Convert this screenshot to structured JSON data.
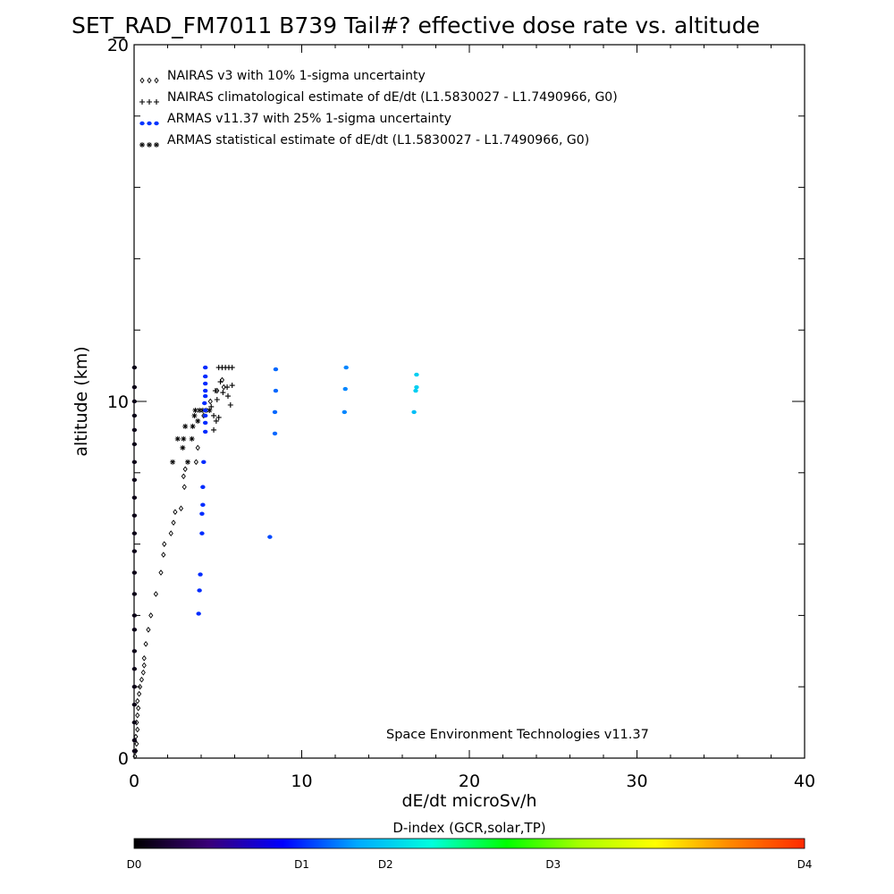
{
  "title": "SET_RAD_FM7011  B739 Tail#? effective dose rate vs. altitude",
  "credit": "Space Environment Technologies v11.37",
  "colorbar": {
    "title": "D-index (GCR,solar,TP)",
    "labels": [
      {
        "text": "D0",
        "value": 0
      },
      {
        "text": "D1",
        "value": 0.25
      },
      {
        "text": "D2",
        "value": 0.375
      },
      {
        "text": "D3",
        "value": 0.625
      },
      {
        "text": "D4",
        "value": 1.0
      }
    ],
    "stops": [
      "#000000",
      "#3a0078",
      "#0000ff",
      "#00aaff",
      "#00ffdd",
      "#00ff00",
      "#aaff00",
      "#ffff00",
      "#ff8800",
      "#ff2a00"
    ]
  },
  "chart_data": {
    "type": "scatter",
    "title": "SET_RAD_FM7011  B739 Tail#? effective dose rate vs. altitude",
    "xlabel": "dE/dt microSv/h",
    "ylabel": "altitude (km)",
    "xlim": [
      0,
      40
    ],
    "ylim": [
      0,
      20
    ],
    "xticks": [
      0,
      10,
      20,
      30,
      40
    ],
    "yticks": [
      0,
      10,
      20
    ],
    "legend_position": "top-left",
    "legend": [
      {
        "marker": "◇◇◇",
        "text": "NAIRAS v3 with 10% 1-sigma uncertainty",
        "color": "#000000"
      },
      {
        "marker": "+++",
        "text": "NAIRAS climatological estimate of dE/dt (L1.5830027 - L1.7490966, G0)",
        "color": "#000000"
      },
      {
        "marker": "●●●",
        "text": "ARMAS v11.37 with 25% 1-sigma uncertainty",
        "color": "#0033ff"
      },
      {
        "marker": "***",
        "text": "ARMAS statistical estimate of dE/dt (L1.5830027 - L1.7490966, G0)",
        "color": "#000000"
      }
    ],
    "series": [
      {
        "marker": "diamond",
        "color": "#000000",
        "points": [
          [
            0.05,
            0.05
          ],
          [
            0.1,
            0.2
          ],
          [
            0.15,
            0.4
          ],
          [
            0.1,
            0.6
          ],
          [
            0.2,
            0.8
          ],
          [
            0.15,
            1.0
          ],
          [
            0.2,
            1.2
          ],
          [
            0.25,
            1.4
          ],
          [
            0.2,
            1.6
          ],
          [
            0.3,
            1.8
          ],
          [
            0.35,
            2.0
          ],
          [
            0.45,
            2.2
          ],
          [
            0.55,
            2.4
          ],
          [
            0.6,
            2.6
          ],
          [
            0.6,
            2.8
          ],
          [
            0.7,
            3.2
          ],
          [
            0.85,
            3.6
          ],
          [
            1.0,
            4.0
          ],
          [
            1.3,
            4.6
          ],
          [
            1.6,
            5.2
          ],
          [
            1.75,
            5.7
          ],
          [
            1.8,
            6.0
          ],
          [
            2.2,
            6.3
          ],
          [
            2.35,
            6.6
          ],
          [
            2.45,
            6.9
          ],
          [
            2.8,
            7.0
          ],
          [
            3.0,
            7.6
          ],
          [
            2.95,
            7.9
          ],
          [
            3.05,
            8.1
          ],
          [
            3.7,
            8.3
          ],
          [
            3.8,
            8.7
          ],
          [
            4.15,
            9.6
          ],
          [
            4.55,
            10.0
          ],
          [
            4.95,
            10.3
          ],
          [
            5.25,
            10.6
          ],
          [
            5.35,
            10.4
          ]
        ]
      },
      {
        "marker": "plus",
        "color": "#000000",
        "points": [
          [
            4.75,
            9.2
          ],
          [
            4.9,
            9.45
          ],
          [
            4.6,
            9.85
          ],
          [
            4.95,
            10.05
          ],
          [
            5.3,
            10.25
          ],
          [
            5.55,
            10.4
          ],
          [
            5.85,
            10.45
          ],
          [
            5.6,
            10.15
          ],
          [
            5.75,
            9.9
          ],
          [
            5.05,
            10.95
          ],
          [
            5.25,
            10.95
          ],
          [
            5.45,
            10.95
          ],
          [
            5.65,
            10.95
          ],
          [
            5.85,
            10.95
          ],
          [
            4.85,
            10.3
          ],
          [
            5.15,
            10.55
          ],
          [
            5.05,
            9.55
          ],
          [
            4.75,
            9.6
          ]
        ]
      },
      {
        "marker": "star",
        "color": "#000000",
        "points": [
          [
            2.3,
            8.3
          ],
          [
            2.6,
            8.95
          ],
          [
            2.95,
            8.95
          ],
          [
            3.05,
            9.3
          ],
          [
            3.2,
            8.3
          ],
          [
            3.45,
            8.95
          ],
          [
            3.5,
            9.3
          ],
          [
            3.6,
            9.6
          ],
          [
            3.65,
            9.75
          ],
          [
            3.9,
            9.75
          ],
          [
            4.1,
            9.75
          ],
          [
            4.3,
            9.75
          ],
          [
            4.5,
            9.75
          ],
          [
            3.8,
            9.45
          ],
          [
            2.9,
            8.7
          ]
        ]
      },
      {
        "marker": "dot",
        "color_by_dindex": true,
        "points": [
          [
            0.02,
            0.2,
            0.02
          ],
          [
            0.02,
            0.5,
            0.02
          ],
          [
            0.02,
            1.0,
            0.02
          ],
          [
            0.02,
            1.5,
            0.02
          ],
          [
            0.02,
            2.0,
            0.02
          ],
          [
            0.02,
            2.5,
            0.02
          ],
          [
            0.02,
            3.0,
            0.02
          ],
          [
            0.02,
            3.6,
            0.02
          ],
          [
            0.02,
            4.0,
            0.02
          ],
          [
            0.02,
            4.6,
            0.02
          ],
          [
            0.02,
            5.2,
            0.02
          ],
          [
            0.02,
            5.8,
            0.02
          ],
          [
            0.02,
            6.3,
            0.02
          ],
          [
            0.02,
            6.8,
            0.02
          ],
          [
            0.02,
            7.3,
            0.02
          ],
          [
            0.02,
            7.8,
            0.02
          ],
          [
            0.02,
            8.3,
            0.02
          ],
          [
            0.02,
            8.8,
            0.02
          ],
          [
            0.02,
            9.2,
            0.02
          ],
          [
            0.02,
            9.6,
            0.02
          ],
          [
            0.02,
            10.0,
            0.02
          ],
          [
            0.02,
            10.4,
            0.02
          ],
          [
            0.02,
            10.95,
            0.02
          ],
          [
            3.85,
            4.05,
            0.25
          ],
          [
            3.9,
            4.7,
            0.25
          ],
          [
            3.95,
            5.15,
            0.25
          ],
          [
            4.05,
            6.3,
            0.25
          ],
          [
            4.05,
            6.85,
            0.25
          ],
          [
            4.1,
            7.1,
            0.25
          ],
          [
            4.1,
            7.6,
            0.25
          ],
          [
            4.15,
            8.3,
            0.25
          ],
          [
            4.25,
            9.15,
            0.25
          ],
          [
            4.25,
            9.4,
            0.25
          ],
          [
            4.25,
            9.6,
            0.25
          ],
          [
            4.25,
            9.75,
            0.25
          ],
          [
            4.2,
            9.95,
            0.25
          ],
          [
            4.25,
            10.15,
            0.25
          ],
          [
            4.25,
            10.3,
            0.25
          ],
          [
            4.25,
            10.5,
            0.25
          ],
          [
            4.25,
            10.7,
            0.25
          ],
          [
            4.25,
            10.95,
            0.25
          ],
          [
            8.1,
            6.2,
            0.27
          ],
          [
            8.4,
            9.1,
            0.29
          ],
          [
            8.4,
            9.7,
            0.29
          ],
          [
            8.45,
            10.3,
            0.29
          ],
          [
            8.45,
            10.9,
            0.29
          ],
          [
            12.55,
            9.7,
            0.31
          ],
          [
            12.6,
            10.35,
            0.31
          ],
          [
            12.65,
            10.95,
            0.31
          ],
          [
            16.7,
            9.7,
            0.36
          ],
          [
            16.8,
            10.3,
            0.38
          ],
          [
            16.85,
            10.4,
            0.38
          ],
          [
            16.85,
            10.75,
            0.38
          ]
        ]
      }
    ]
  }
}
